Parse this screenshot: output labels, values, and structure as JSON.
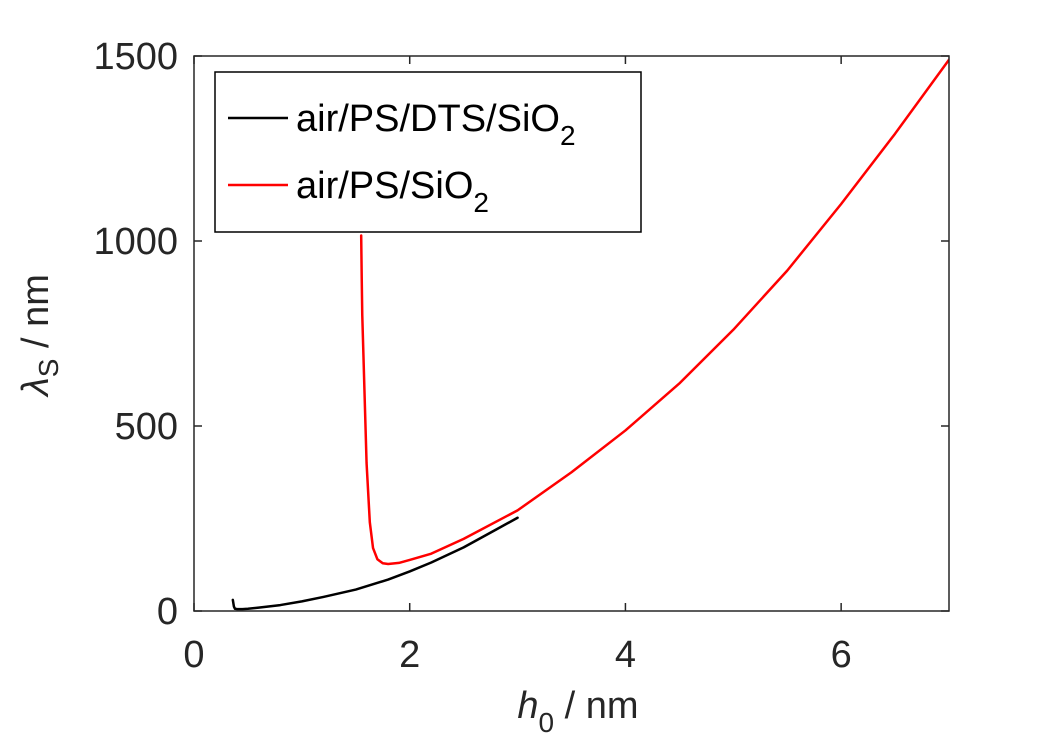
{
  "chart_data": {
    "type": "line",
    "title": "",
    "xlabel": {
      "symbol": "h",
      "subscript": "0",
      "unit_text": " / nm"
    },
    "ylabel": {
      "symbol": "λ",
      "subscript": "S",
      "unit_text": " / nm"
    },
    "xlim": [
      0,
      7
    ],
    "ylim": [
      0,
      1500
    ],
    "xticks": [
      0,
      2,
      4,
      6
    ],
    "yticks": [
      0,
      500,
      1000,
      1500
    ],
    "xtick_labels": [
      "0",
      "2",
      "4",
      "6"
    ],
    "ytick_labels": [
      "0",
      "500",
      "1000",
      "1500"
    ],
    "grid": false,
    "legend_position": "top-left",
    "series": [
      {
        "name": "air/PS/DTS/SiO2",
        "label_main": "air/PS/DTS/SiO",
        "label_sub": "2",
        "color": "#000000",
        "x": [
          0.36,
          0.37,
          0.38,
          0.4,
          0.45,
          0.5,
          0.6,
          0.8,
          1.0,
          1.2,
          1.5,
          1.8,
          2.0,
          2.2,
          2.5,
          2.8,
          3.0
        ],
        "y": [
          30,
          12,
          6,
          5,
          5,
          6,
          9,
          16,
          26,
          38,
          58,
          85,
          107,
          131,
          172,
          220,
          252
        ]
      },
      {
        "name": "air/PS/SiO2",
        "label_main": "air/PS/SiO",
        "label_sub": "2",
        "color": "#ff0000",
        "x": [
          1.55,
          1.555,
          1.56,
          1.57,
          1.58,
          1.6,
          1.63,
          1.66,
          1.7,
          1.75,
          1.8,
          1.9,
          2.0,
          2.2,
          2.5,
          3.0,
          3.5,
          4.0,
          4.5,
          5.0,
          5.5,
          6.0,
          6.5,
          7.0
        ],
        "y": [
          1015,
          900,
          800,
          700,
          600,
          400,
          240,
          170,
          140,
          129,
          127,
          130,
          138,
          155,
          195,
          272,
          375,
          488,
          615,
          760,
          920,
          1100,
          1290,
          1490
        ]
      }
    ]
  }
}
